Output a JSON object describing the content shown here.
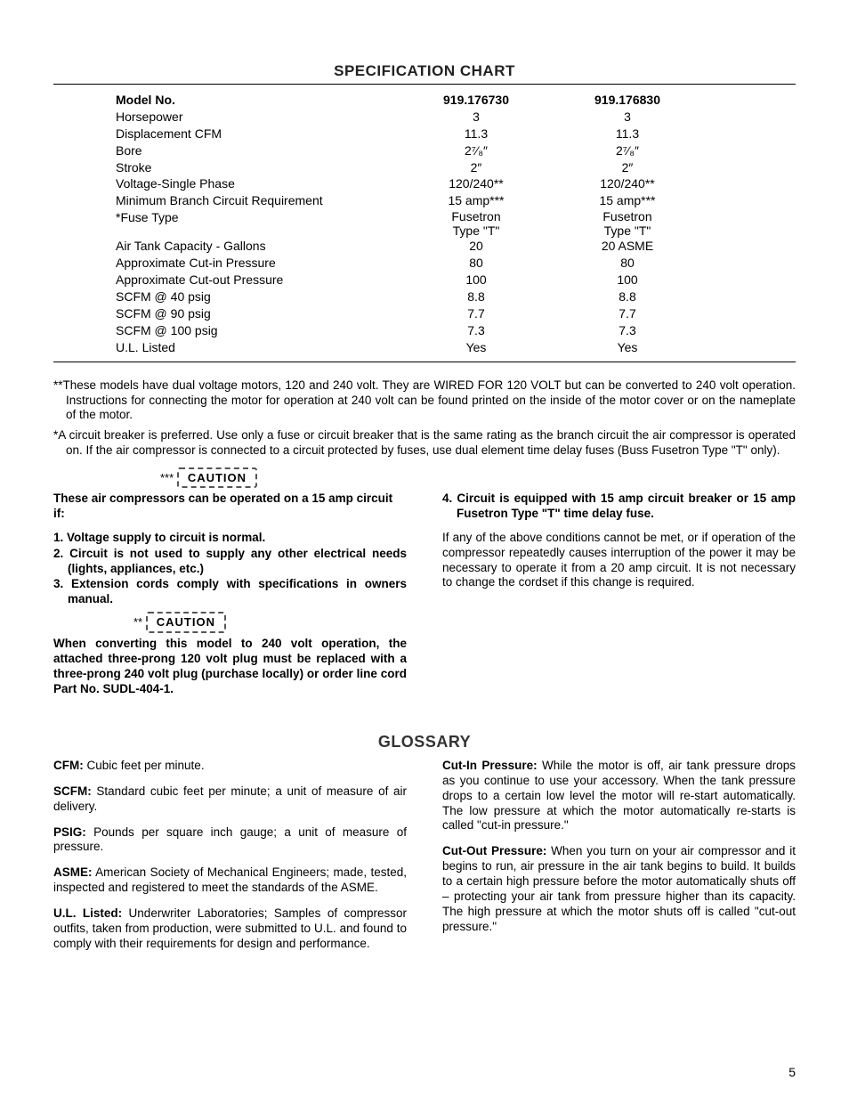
{
  "spec": {
    "title": "SPECIFICATION CHART",
    "header": {
      "label": "Model No.",
      "col1": "919.176730",
      "col2": "919.176830"
    },
    "rows": [
      {
        "label": "Horsepower",
        "col1": "3",
        "col2": "3"
      },
      {
        "label": "Displacement CFM",
        "col1": "11.3",
        "col2": "11.3"
      },
      {
        "label": "Bore",
        "col1": "2⁷⁄₈″",
        "col2": "2⁷⁄₈″"
      },
      {
        "label": "Stroke",
        "col1": "2″",
        "col2": "2″"
      },
      {
        "label": "Voltage-Single Phase",
        "col1": "120/240**",
        "col2": "120/240**"
      },
      {
        "label": "Minimum Branch Circuit Requirement",
        "col1": "15 amp***",
        "col2": "15 amp***"
      },
      {
        "label": "*Fuse Type",
        "col1": "Fusetron\nType \"T\"",
        "col2": "Fusetron\nType \"T\"",
        "multi": true
      },
      {
        "label": "Air Tank Capacity - Gallons",
        "col1": "20",
        "col2": "20 ASME"
      },
      {
        "label": "Approximate Cut-in Pressure",
        "col1": "80",
        "col2": "80"
      },
      {
        "label": "Approximate Cut-out Pressure",
        "col1": "100",
        "col2": "100"
      },
      {
        "label": "SCFM @   40 psig",
        "col1": "8.8",
        "col2": "8.8"
      },
      {
        "label": "SCFM @   90 psig",
        "col1": "7.7",
        "col2": "7.7"
      },
      {
        "label": "SCFM @ 100 psig",
        "col1": "7.3",
        "col2": "7.3"
      },
      {
        "label": "U.L. Listed",
        "col1": "Yes",
        "col2": "Yes"
      }
    ]
  },
  "notes": {
    "n1": "**These models have dual voltage motors, 120 and 240 volt. They are WIRED FOR 120 VOLT but can be converted to 240 volt operation. Instructions for connecting the motor for operation at 240 volt can be found printed on the inside of the motor cover or on the nameplate of the motor.",
    "n2": "*A circuit breaker is preferred. Use only a fuse or circuit breaker that is the same rating as the branch circuit the air compressor is operated on. If the air compressor is connected to a circuit protected by fuses, use dual element time delay fuses (Buss Fusetron Type \"T\" only)."
  },
  "caution": {
    "stars3": "***",
    "stars2": "**",
    "label": "CAUTION",
    "intro": "These air compressors can be operated on a 15 amp circuit if:",
    "item1": "1. Voltage supply to circuit is normal.",
    "item2": "2. Circuit is not used to supply any other electrical needs (lights, appliances, etc.)",
    "item3": "3. Extension cords comply with specifications in owners manual.",
    "item4": "4. Circuit is equipped with 15 amp circuit breaker or 15 amp Fusetron Type \"T\" time delay fuse.",
    "para": "If any of the above conditions cannot be met, or if operation of the compressor repeatedly causes interruption of the power it may be necessary to operate it from a 20 amp circuit. It is not necessary to change the cordset if this change is required.",
    "convert": "When converting this model to 240 volt operation, the attached three-prong 120 volt plug must be replaced with a three-prong 240 volt plug (purchase locally) or order line cord Part No. SUDL-404-1."
  },
  "glossary": {
    "title": "GLOSSARY",
    "cfm_t": "CFM:",
    "cfm": " Cubic feet per minute.",
    "scfm_t": "SCFM:",
    "scfm": " Standard cubic feet per minute; a unit of measure of air delivery.",
    "psig_t": "PSIG:",
    "psig": " Pounds per square inch gauge; a unit of measure of pressure.",
    "asme_t": "ASME:",
    "asme": " American Society of Mechanical Engineers; made, tested, inspected and registered to meet the standards of the ASME.",
    "ul_t": "U.L. Listed:",
    "ul": " Underwriter Laboratories; Samples of compressor outfits, taken from production, were submitted to U.L. and found to comply with their requirements for design and performance.",
    "cutin_t": "Cut-In Pressure:",
    "cutin": " While the motor is off, air tank pressure drops as you continue to use your accessory. When the tank pressure drops to a certain low level the motor will re-start automatically. The low pressure at which the motor automatically re-starts is called \"cut-in pressure.\"",
    "cutout_t": "Cut-Out Pressure:",
    "cutout": " When you turn on your air compressor and it begins to run, air pressure in the air tank begins to build. It builds to a certain high pressure before the motor automatically shuts off – protecting your air tank from pressure higher than its capacity. The high pressure at which the motor shuts off is called \"cut-out pressure.\""
  },
  "page": "5"
}
